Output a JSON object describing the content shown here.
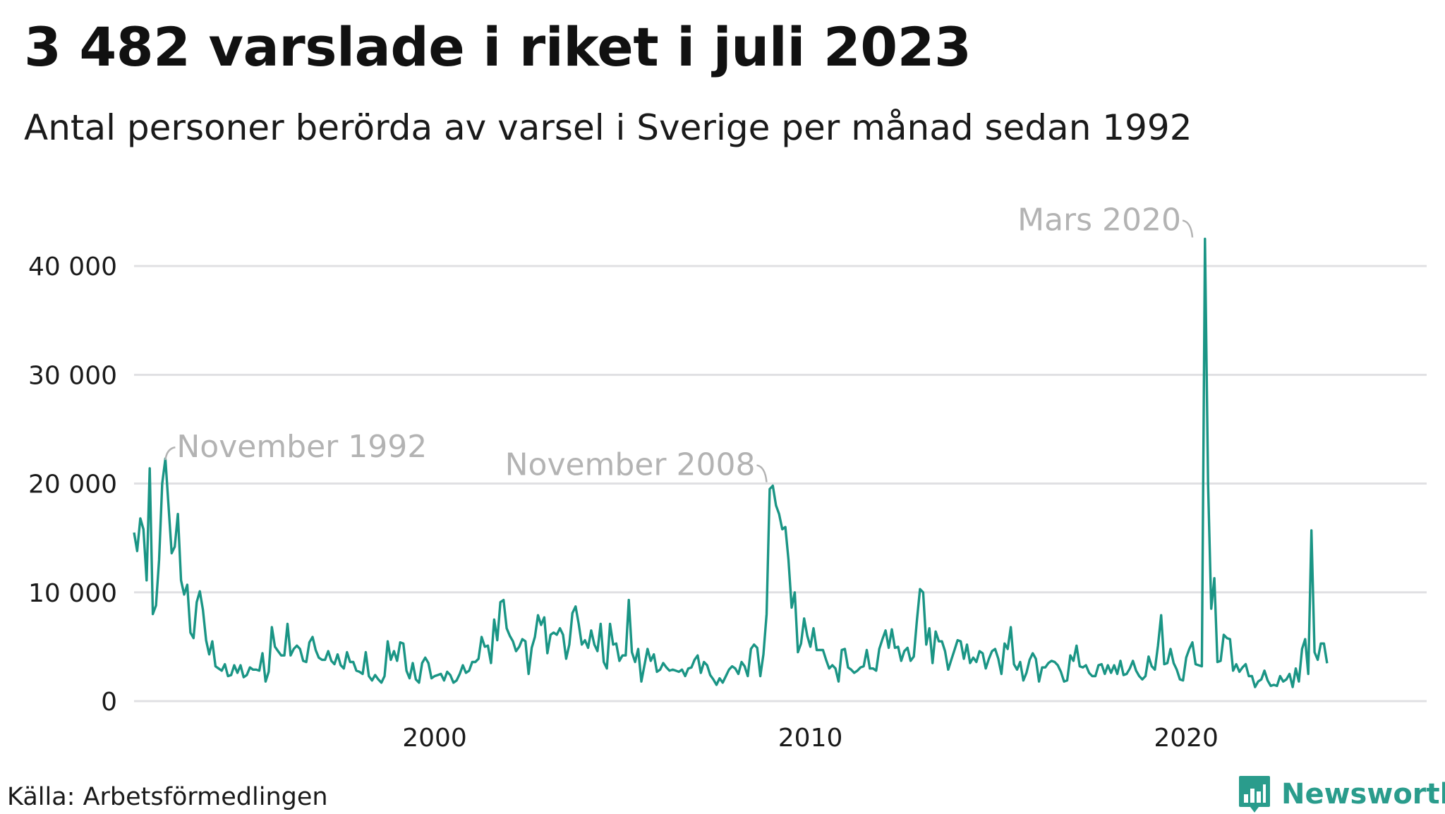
{
  "title": "3 482 varslade i riket i juli 2023",
  "subtitle": "Antal personer berörda av varsel i Sverige per månad sedan 1992",
  "source": "Källa: Arbetsförmedlingen",
  "brand": {
    "name": "Newsworthy",
    "icon": "bar-chart-logo-icon",
    "color": "#2a9c8c"
  },
  "chart_data": {
    "type": "line",
    "title": "3 482 varslade i riket i juli 2023",
    "subtitle": "Antal personer berörda av varsel i Sverige per månad sedan 1992",
    "xlabel": "",
    "ylabel": "",
    "x_start": "1992-01",
    "x_end": "2023-07",
    "xlim": [
      1992.0,
      2026.4
    ],
    "ylim": [
      0,
      45000
    ],
    "grid": true,
    "line_color": "#1a9585",
    "y_ticks": [
      0,
      10000,
      20000,
      30000,
      40000
    ],
    "y_tick_labels": [
      "0",
      "10 000",
      "20 000",
      "30 000",
      "40 000"
    ],
    "x_ticks": [
      2000,
      2010,
      2020
    ],
    "x_tick_labels": [
      "2000",
      "2010",
      "2020"
    ],
    "annotations": [
      {
        "label": "November 1992",
        "x": "1992-11",
        "y": 22300,
        "side": "right"
      },
      {
        "label": "November 2008",
        "x": "2008-11",
        "y": 20000,
        "side": "left"
      },
      {
        "label": "Mars 2020",
        "x": "2020-03",
        "y": 42500,
        "side": "left"
      }
    ],
    "series": [
      {
        "values": [
          15500,
          13800,
          16800,
          15800,
          11100,
          21400,
          8000,
          8800,
          13000,
          20000,
          22300,
          18000,
          13600,
          14200,
          17200,
          11100,
          9800,
          10700,
          6300,
          5800,
          9100,
          10100,
          8400,
          5600,
          4300,
          5500,
          3200,
          3000,
          2800,
          3400,
          2300,
          2400,
          3300,
          2600,
          3300,
          2200,
          2400,
          3100,
          2900,
          2900,
          2800,
          4400,
          1800,
          2700,
          6800,
          5000,
          4600,
          4200,
          4200,
          7100,
          4200,
          4800,
          5100,
          4800,
          3700,
          3600,
          5400,
          5900,
          4700,
          4000,
          3800,
          3800,
          4600,
          3700,
          3400,
          4300,
          3300,
          3000,
          4500,
          3600,
          3600,
          2800,
          2700,
          2500,
          4500,
          2300,
          1900,
          2400,
          2000,
          1700,
          2300,
          5500,
          3800,
          4600,
          3700,
          5400,
          5300,
          2800,
          2100,
          3500,
          2000,
          1700,
          3500,
          4000,
          3500,
          2100,
          2300,
          2400,
          2500,
          1900,
          2700,
          2400,
          1700,
          1900,
          2500,
          3300,
          2600,
          2800,
          3600,
          3600,
          3900,
          5900,
          5000,
          5100,
          3500,
          7500,
          5600,
          9100,
          9300,
          6700,
          6000,
          5500,
          4600,
          5000,
          5700,
          5500,
          2500,
          4900,
          5900,
          7900,
          7000,
          7700,
          4400,
          6100,
          6300,
          6100,
          6700,
          6100,
          3900,
          5200,
          8100,
          8700,
          7100,
          5200,
          5600,
          4900,
          6500,
          5200,
          4600,
          7100,
          3600,
          3000,
          7100,
          5200,
          5300,
          3700,
          4200,
          4200,
          9300,
          4500,
          3600,
          4800,
          1800,
          3300,
          4800,
          3700,
          4300,
          2700,
          2900,
          3500,
          3100,
          2800,
          2900,
          2800,
          2700,
          2900,
          2300,
          3000,
          3100,
          3800,
          4200,
          2600,
          3600,
          3300,
          2400,
          2000,
          1500,
          2100,
          1700,
          2300,
          2900,
          3200,
          3000,
          2500,
          3600,
          3200,
          2300,
          4800,
          5200,
          4900,
          2300,
          4300,
          8000,
          19500,
          19800,
          18000,
          17200,
          15800,
          16000,
          13000,
          8600,
          10000,
          4500,
          5300,
          7600,
          6000,
          5000,
          6700,
          4700,
          4700,
          4700,
          3800,
          3000,
          3300,
          3000,
          1800,
          4700,
          4800,
          3100,
          2900,
          2600,
          2800,
          3100,
          3200,
          4700,
          3000,
          3000,
          2800,
          4800,
          5700,
          6500,
          4900,
          6600,
          4900,
          5000,
          3700,
          4600,
          4900,
          3700,
          4100,
          7400,
          10300,
          10000,
          5200,
          6700,
          3500,
          6400,
          5500,
          5500,
          4600,
          2900,
          3800,
          4700,
          5600,
          5500,
          3900,
          5200,
          3500,
          4000,
          3600,
          4600,
          4400,
          3000,
          3900,
          4600,
          4800,
          3900,
          2500,
          5300,
          4800,
          6800,
          3400,
          2900,
          3600,
          1900,
          2600,
          3800,
          4400,
          3900,
          1800,
          3100,
          3100,
          3500,
          3700,
          3600,
          3300,
          2700,
          1800,
          1900,
          4200,
          3700,
          5100,
          3200,
          3100,
          3300,
          2600,
          2300,
          2300,
          3300,
          3400,
          2500,
          3300,
          2600,
          3300,
          2500,
          3700,
          2400,
          2500,
          3000,
          3700,
          2800,
          2300,
          2000,
          2300,
          4100,
          3200,
          2900,
          5100,
          7900,
          3400,
          3500,
          4800,
          3500,
          2900,
          2000,
          1900,
          4000,
          4800,
          5400,
          3400,
          3300,
          3200,
          42500,
          20000,
          8500,
          11300,
          3600,
          3700,
          6100,
          5800,
          5700,
          2800,
          3400,
          2700,
          3100,
          3400,
          2300,
          2300,
          1300,
          1800,
          2000,
          2800,
          1900,
          1400,
          1500,
          1400,
          2300,
          1800,
          2000,
          2500,
          1300,
          3000,
          1800,
          4800,
          5700,
          2500,
          15700,
          4500,
          3800,
          5300,
          5300,
          3482
        ]
      }
    ]
  }
}
